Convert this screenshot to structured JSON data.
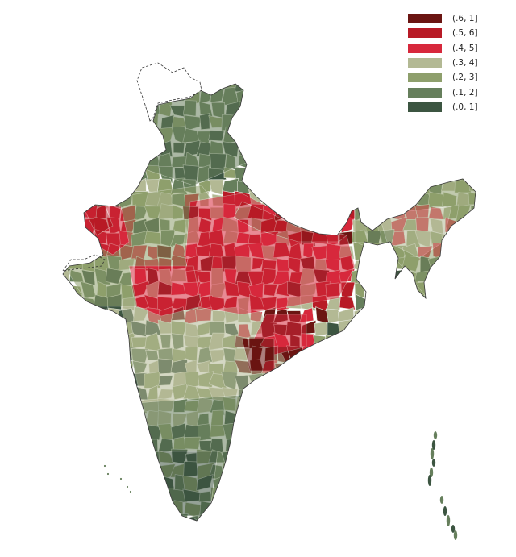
{
  "legend": {
    "items": [
      {
        "label": "(.6, 1]",
        "color": "#6b1512"
      },
      {
        "label": "(.5, 6]",
        "color": "#b81b26"
      },
      {
        "label": "(.4, 5]",
        "color": "#d7283c"
      },
      {
        "label": "(.3, 4]",
        "color": "#b3b994"
      },
      {
        "label": "(.2, 3]",
        "color": "#8e9f6c"
      },
      {
        "label": "(.1, 2]",
        "color": "#667f5c"
      },
      {
        "label": "(.0, 1]",
        "color": "#3c5541"
      }
    ]
  },
  "map": {
    "boundary_color": "#222222",
    "district_line_color": "#e6eadf",
    "undisputed_outline_color": "#333333"
  }
}
